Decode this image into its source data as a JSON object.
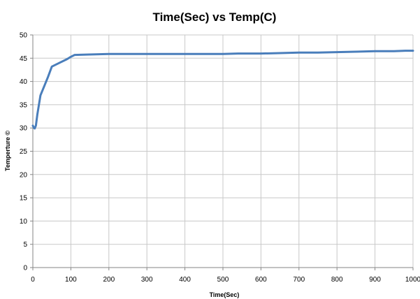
{
  "chart_data": {
    "type": "line",
    "title": "Time(Sec) vs Temp(C)",
    "xlabel": "Time(Sec)",
    "ylabel": "Temperture ©",
    "xlim": [
      0,
      1000
    ],
    "ylim": [
      0,
      50
    ],
    "x_ticks": [
      0,
      100,
      200,
      300,
      400,
      500,
      600,
      700,
      800,
      900,
      1000
    ],
    "y_ticks": [
      0,
      5,
      10,
      15,
      20,
      25,
      30,
      35,
      40,
      45,
      50
    ],
    "grid": "both",
    "legend": "none",
    "colors": {
      "line": "#4a7ebb",
      "grid": "#c8c8c8",
      "axis": "#868686"
    },
    "series": [
      {
        "x": [
          0,
          3,
          5,
          8,
          12,
          20,
          30,
          40,
          50,
          70,
          90,
          100,
          110,
          150,
          200,
          300,
          400,
          500,
          540,
          600,
          650,
          700,
          750,
          800,
          850,
          900,
          950,
          980,
          1000
        ],
        "values": [
          30.5,
          30.0,
          29.9,
          30.5,
          33.0,
          37.0,
          39.0,
          41.0,
          43.2,
          44.0,
          44.8,
          45.3,
          45.7,
          45.8,
          45.9,
          45.9,
          45.9,
          45.9,
          46.0,
          46.0,
          46.1,
          46.2,
          46.2,
          46.3,
          46.4,
          46.5,
          46.5,
          46.6,
          46.6
        ]
      }
    ]
  }
}
